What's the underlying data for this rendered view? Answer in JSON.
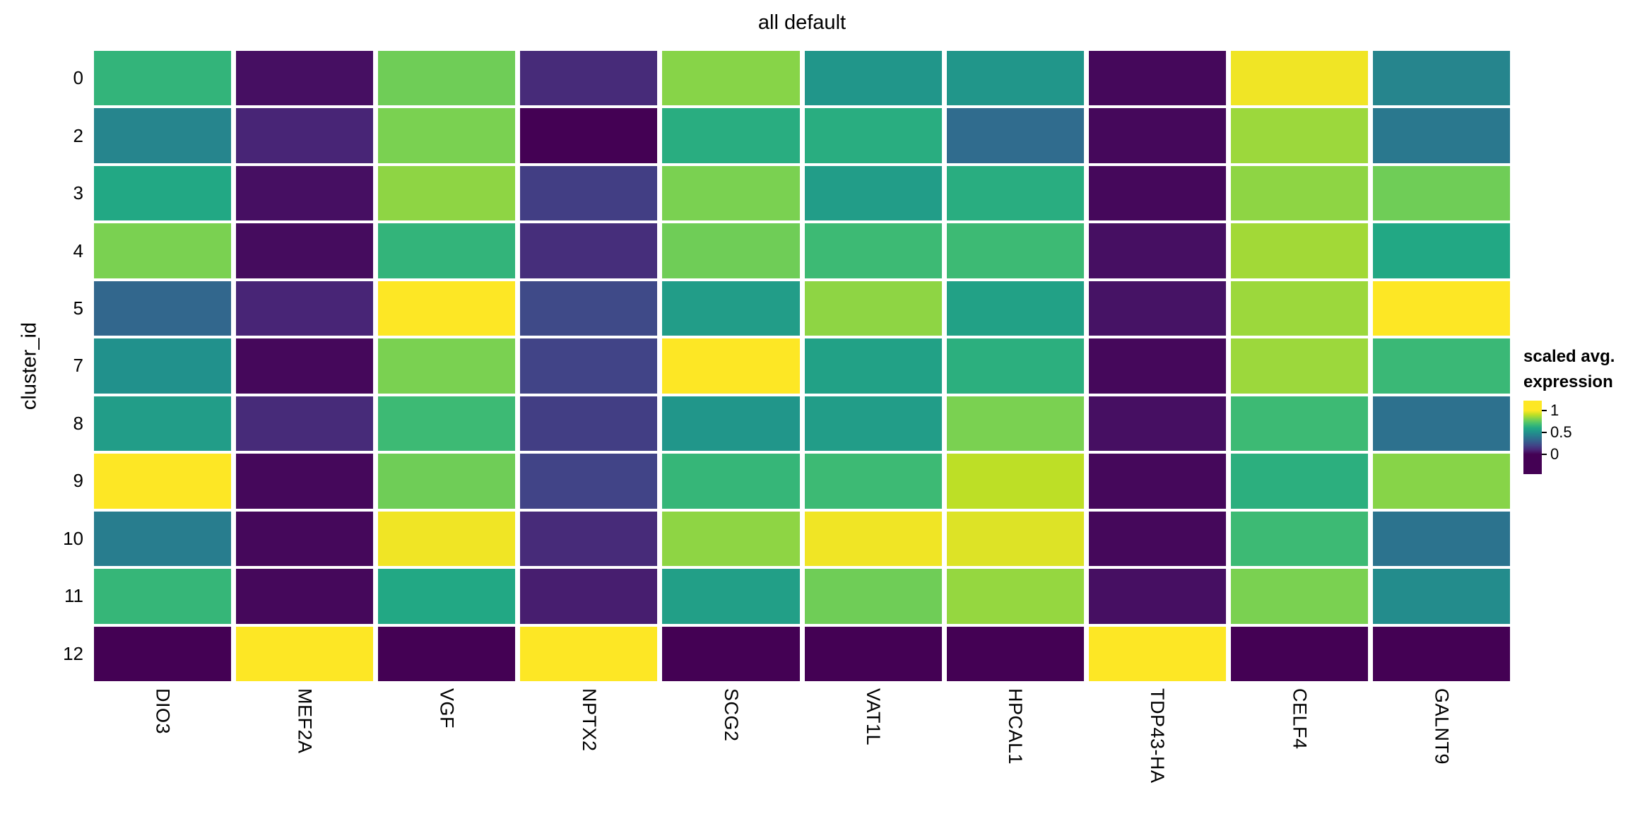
{
  "title": "all default",
  "y_axis": {
    "label": "cluster_id"
  },
  "legend": {
    "title_line1": "scaled avg.",
    "title_line2": "expression",
    "ticks": [
      "1",
      "0.5",
      "0"
    ]
  },
  "colors": {
    "background": "#ffffff",
    "text": "#000000",
    "colormap_low": "#440154",
    "colormap_mid": "#21918c",
    "colormap_high": "#fde725"
  },
  "chart_data": {
    "type": "heatmap",
    "title": "all default",
    "xlabel": "",
    "ylabel": "cluster_id",
    "legend_title": "scaled avg. expression",
    "colormap": "viridis",
    "value_range": [
      0,
      1
    ],
    "legend_ticks": [
      1,
      0.5,
      0
    ],
    "grid": false,
    "legend_position": "right",
    "columns": [
      "DIO3",
      "MEF2A",
      "VGF",
      "NPTX2",
      "SCG2",
      "VAT1L",
      "HPCAL1",
      "TDP43-HA",
      "CELF4",
      "GALNT9"
    ],
    "rows": [
      "0",
      "2",
      "3",
      "4",
      "5",
      "7",
      "8",
      "9",
      "10",
      "11",
      "12"
    ],
    "values": [
      [
        0.65,
        0.04,
        0.78,
        0.12,
        0.82,
        0.52,
        0.52,
        0.02,
        0.98,
        0.45
      ],
      [
        0.45,
        0.1,
        0.8,
        0.0,
        0.62,
        0.62,
        0.35,
        0.02,
        0.85,
        0.4
      ],
      [
        0.6,
        0.04,
        0.83,
        0.18,
        0.8,
        0.55,
        0.62,
        0.02,
        0.83,
        0.78
      ],
      [
        0.8,
        0.03,
        0.65,
        0.13,
        0.78,
        0.68,
        0.68,
        0.04,
        0.86,
        0.6
      ],
      [
        0.33,
        0.1,
        1.0,
        0.22,
        0.55,
        0.83,
        0.57,
        0.05,
        0.85,
        1.0
      ],
      [
        0.5,
        0.02,
        0.8,
        0.2,
        1.0,
        0.57,
        0.63,
        0.02,
        0.85,
        0.67
      ],
      [
        0.55,
        0.12,
        0.68,
        0.18,
        0.52,
        0.55,
        0.8,
        0.04,
        0.68,
        0.37
      ],
      [
        1.0,
        0.02,
        0.78,
        0.2,
        0.66,
        0.68,
        0.9,
        0.02,
        0.63,
        0.82
      ],
      [
        0.42,
        0.02,
        0.98,
        0.12,
        0.83,
        0.98,
        0.95,
        0.02,
        0.68,
        0.38
      ],
      [
        0.66,
        0.02,
        0.6,
        0.08,
        0.56,
        0.78,
        0.84,
        0.04,
        0.8,
        0.48
      ],
      [
        0.0,
        1.0,
        0.0,
        1.0,
        0.0,
        0.0,
        0.0,
        1.0,
        0.0,
        0.0
      ]
    ]
  }
}
